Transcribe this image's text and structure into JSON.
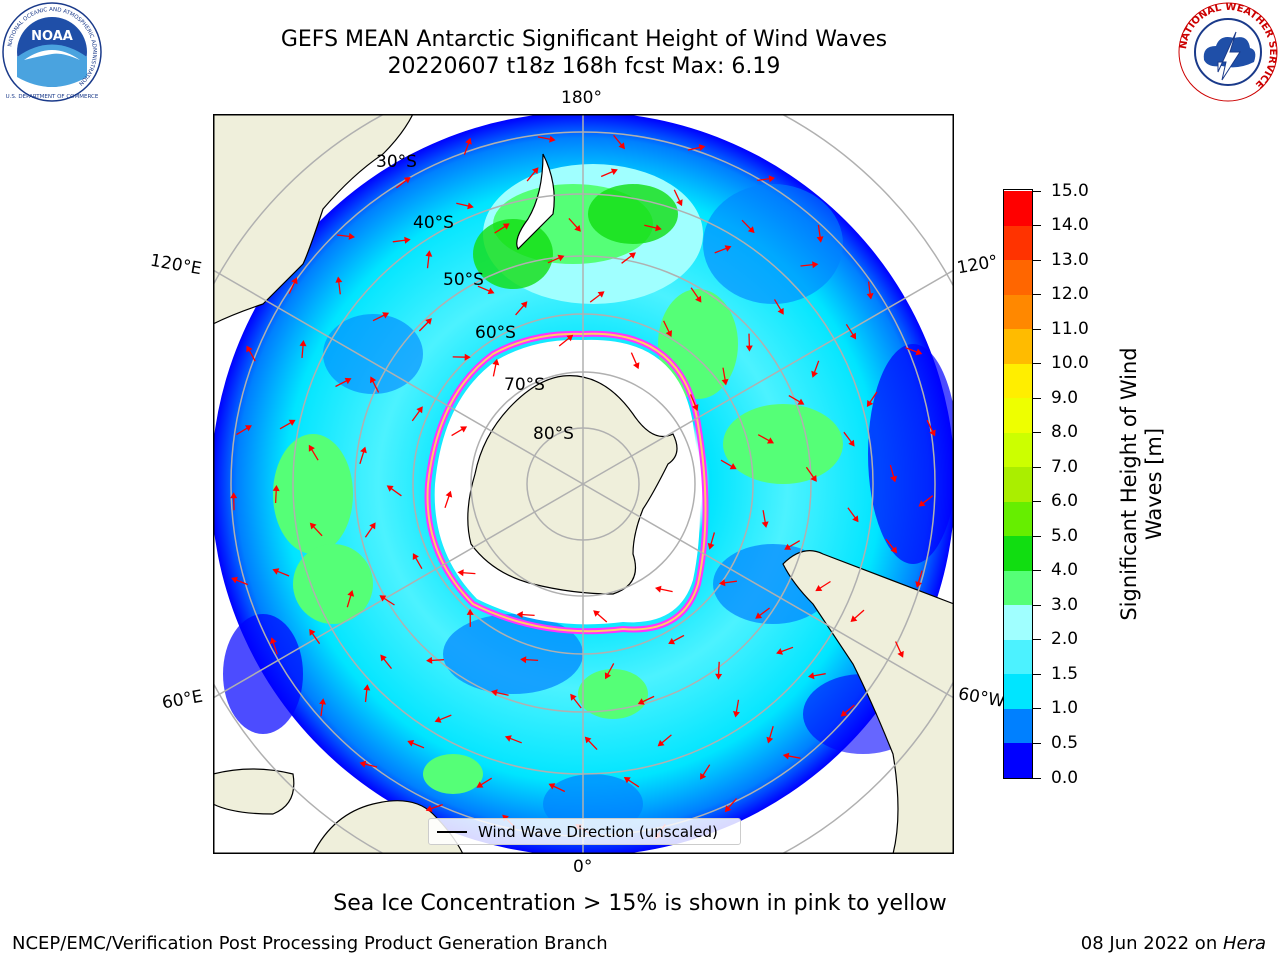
{
  "header": {
    "title_line1": "GEFS MEAN Antarctic Significant Height of Wind Waves",
    "title_line2": "20220607 t18z 168h fcst   Max: 6.19"
  },
  "logos": {
    "left": {
      "name": "NOAA",
      "ring_text": "NATIONAL OCEANIC AND ATMOSPHERIC ADMINISTRATION",
      "bottom_text": "U.S. DEPARTMENT OF COMMERCE"
    },
    "right": {
      "ring_text": "NATIONAL WEATHER SERVICE"
    }
  },
  "map": {
    "longitude_labels": {
      "top": "180°",
      "bottom": "0°",
      "upper_left": "120°E",
      "lower_left": "60°E",
      "upper_right": "120°",
      "lower_right": "60°W"
    },
    "latitude_labels": [
      "30°S",
      "40°S",
      "50°S",
      "60°S",
      "70°S",
      "80°S"
    ],
    "projection": "south-polar-stereographic",
    "colors": {
      "land": "#efefdb",
      "ice_shelf": "#ffffff",
      "grid": "#b0b0b0",
      "arrows": "#ff0000"
    }
  },
  "legend": {
    "label": "Wind Wave Direction (unscaled)"
  },
  "colorbar": {
    "title_line1": "Significant Height of Wind",
    "title_line2": "Waves [m]",
    "ticks": [
      "0.0",
      "0.5",
      "1.0",
      "1.5",
      "2.0",
      "3.0",
      "4.0",
      "5.0",
      "6.0",
      "7.0",
      "8.0",
      "9.0",
      "10.0",
      "11.0",
      "12.0",
      "13.0",
      "14.0",
      "15.0"
    ],
    "colors": [
      "#0000ff",
      "#0080ff",
      "#00e5ff",
      "#4cf2ff",
      "#a0ffff",
      "#55ff77",
      "#11dd11",
      "#66ee00",
      "#aaee00",
      "#ccff00",
      "#eeff00",
      "#ffee00",
      "#ffbb00",
      "#ff8800",
      "#ff6600",
      "#ff3300",
      "#ff0000"
    ]
  },
  "notes": {
    "sea_ice": "Sea Ice Concentration > 15% is shown in pink to yellow"
  },
  "footer": {
    "left": "NCEP/EMC/Verification Post Processing Product Generation Branch",
    "right_prefix": "08 Jun 2022 on ",
    "right_italic": "Hera"
  }
}
